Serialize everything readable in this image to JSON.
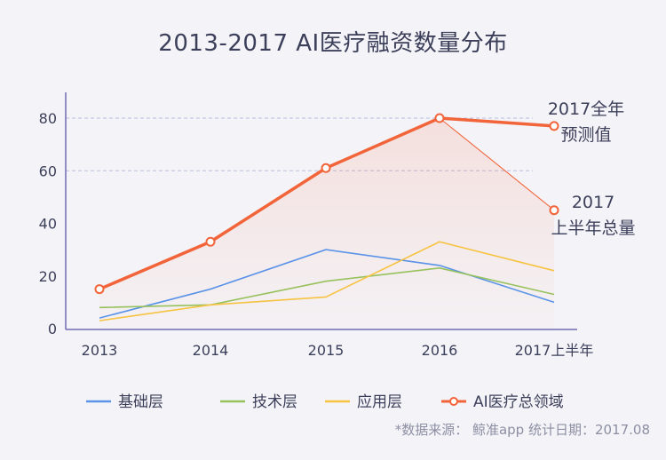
{
  "title": "2013-2017  AI医疗融资数量分布",
  "source": "*数据来源： 鲸准app  统计日期：2017.08",
  "chart_data": {
    "type": "line",
    "categories": [
      "2013",
      "2014",
      "2015",
      "2016",
      "2017上半年"
    ],
    "ylim": [
      0,
      85
    ],
    "yticks": [
      0,
      20,
      40,
      60,
      80
    ],
    "grid": "dashed at 60 and 80",
    "series": [
      {
        "name": "基础层",
        "values": [
          4,
          15,
          30,
          24,
          10
        ],
        "color": "#5a93e8"
      },
      {
        "name": "技术层",
        "values": [
          8,
          9,
          18,
          23,
          13
        ],
        "color": "#97c15c"
      },
      {
        "name": "应用层",
        "values": [
          3,
          9,
          12,
          33,
          22
        ],
        "color": "#f7c342"
      },
      {
        "name": "AI医疗总领域",
        "values": [
          15,
          33,
          61,
          80,
          77
        ],
        "color": "#f2643a",
        "half_year_value": 45
      }
    ],
    "annotations": [
      {
        "text": [
          "2017全年",
          "预测值"
        ],
        "for": "2017上半年 forecast"
      },
      {
        "text": [
          "2017",
          "上半年总量"
        ],
        "for": "2017上半年 actual"
      }
    ],
    "legend_position": "bottom"
  }
}
